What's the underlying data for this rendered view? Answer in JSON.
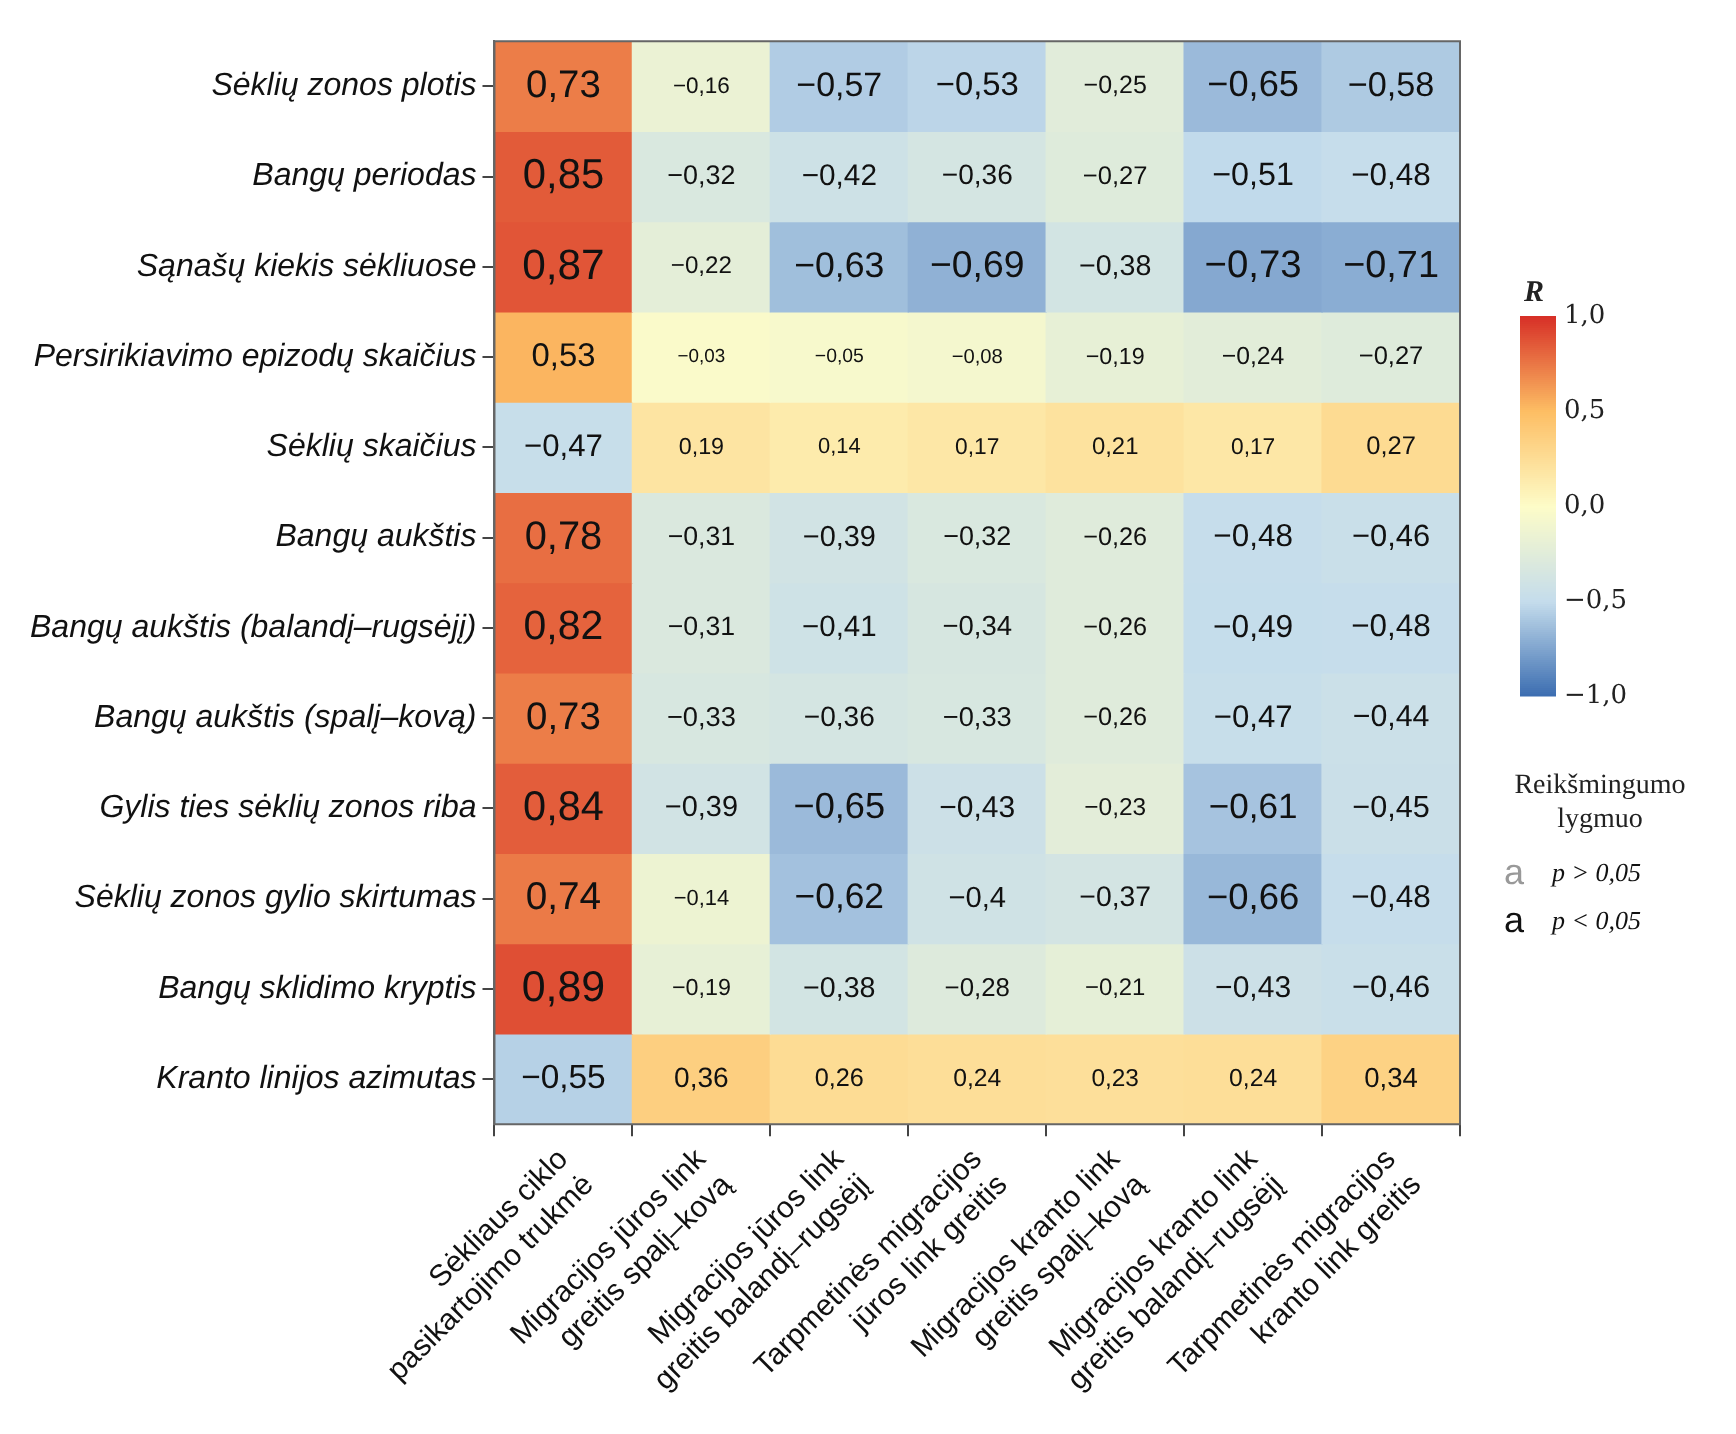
{
  "chart_data": {
    "type": "heatmap",
    "categories": [
      "Sėkliaus ciklo\npasikartojimo trukmė",
      "Migracijos jūros link\ngreitis spalį–kovą",
      "Migracijos jūros link\ngreitis balandį–rugsėjį",
      "Tarpmetinės migracijos\njūros link greitis",
      "Migracijos kranto link\ngreitis spalį–kovą",
      "Migracijos kranto link\ngreitis balandį–rugsėjį",
      "Tarpmetinės migracijos\nkranto link greitis"
    ],
    "y_categories": [
      "Sėklių zonos plotis",
      "Bangų periodas",
      "Sąnašų kiekis sėkliuose",
      "Persirikiavimo epizodų skaičius",
      "Sėklių skaičius",
      "Bangų aukštis",
      "Bangų aukštis (balandį–rugsėjį)",
      "Bangų aukštis (spalį–kovą)",
      "Gylis ties sėklių zonos riba",
      "Sėklių zonos gylio skirtumas",
      "Bangų sklidimo kryptis",
      "Kranto linijos azimutas"
    ],
    "cells": [
      [
        0.73,
        -0.16,
        -0.57,
        -0.53,
        -0.25,
        -0.65,
        -0.58
      ],
      [
        0.85,
        -0.32,
        -0.42,
        -0.36,
        -0.27,
        -0.51,
        -0.48
      ],
      [
        0.87,
        -0.22,
        -0.63,
        -0.69,
        -0.38,
        -0.73,
        -0.71
      ],
      [
        0.53,
        -0.03,
        -0.05,
        -0.08,
        -0.19,
        -0.24,
        -0.27
      ],
      [
        -0.47,
        0.19,
        0.14,
        0.17,
        0.21,
        0.17,
        0.27
      ],
      [
        0.78,
        -0.31,
        -0.39,
        -0.32,
        -0.26,
        -0.48,
        -0.46
      ],
      [
        0.82,
        -0.31,
        -0.41,
        -0.34,
        -0.26,
        -0.49,
        -0.48
      ],
      [
        0.73,
        -0.33,
        -0.36,
        -0.33,
        -0.26,
        -0.47,
        -0.44
      ],
      [
        0.84,
        -0.39,
        -0.65,
        -0.43,
        -0.23,
        -0.61,
        -0.45
      ],
      [
        0.74,
        -0.14,
        -0.62,
        -0.4,
        -0.37,
        -0.66,
        -0.48
      ],
      [
        0.89,
        -0.19,
        -0.38,
        -0.28,
        -0.21,
        -0.43,
        -0.46
      ],
      [
        -0.55,
        0.36,
        0.26,
        0.24,
        0.23,
        0.24,
        0.34
      ]
    ],
    "cell_labels": [
      [
        "0,73",
        "−0,16",
        "−0,57",
        "−0,53",
        "−0,25",
        "−0,65",
        "−0,58"
      ],
      [
        "0,85",
        "−0,32",
        "−0,42",
        "−0,36",
        "−0,27",
        "−0,51",
        "−0,48"
      ],
      [
        "0,87",
        "−0,22",
        "−0,63",
        "−0,69",
        "−0,38",
        "−0,73",
        "−0,71"
      ],
      [
        "0,53",
        "−0,03",
        "−0,05",
        "−0,08",
        "−0,19",
        "−0,24",
        "−0,27"
      ],
      [
        "−0,47",
        "0,19",
        "0,14",
        "0,17",
        "0,21",
        "0,17",
        "0,27"
      ],
      [
        "0,78",
        "−0,31",
        "−0,39",
        "−0,32",
        "−0,26",
        "−0,48",
        "−0,46"
      ],
      [
        "0,82",
        "−0,31",
        "−0,41",
        "−0,34",
        "−0,26",
        "−0,49",
        "−0,48"
      ],
      [
        "0,73",
        "−0,33",
        "−0,36",
        "−0,33",
        "−0,26",
        "−0,47",
        "−0,44"
      ],
      [
        "0,84",
        "−0,39",
        "−0,65",
        "−0,43",
        "−0,23",
        "−0,61",
        "−0,45"
      ],
      [
        "0,74",
        "−0,14",
        "−0,62",
        "−0,4",
        "−0,37",
        "−0,66",
        "−0,48"
      ],
      [
        "0,89",
        "−0,19",
        "−0,38",
        "−0,28",
        "−0,21",
        "−0,43",
        "−0,46"
      ],
      [
        "−0,55",
        "0,36",
        "0,26",
        "0,24",
        "0,23",
        "0,24",
        "0,34"
      ]
    ],
    "clabel": "R",
    "clim": [
      -1,
      1
    ],
    "cticks": [
      {
        "value": 1,
        "label": "1,0"
      },
      {
        "value": 0.5,
        "label": "0,5"
      },
      {
        "value": 0,
        "label": "0,0"
      },
      {
        "value": -0.5,
        "label": "−0,5"
      },
      {
        "value": -1,
        "label": "−1,0"
      }
    ],
    "annotations": [
      "Reikšmingumo lygmuo",
      "a p > 0,05",
      "a p < 0,05"
    ]
  }
}
